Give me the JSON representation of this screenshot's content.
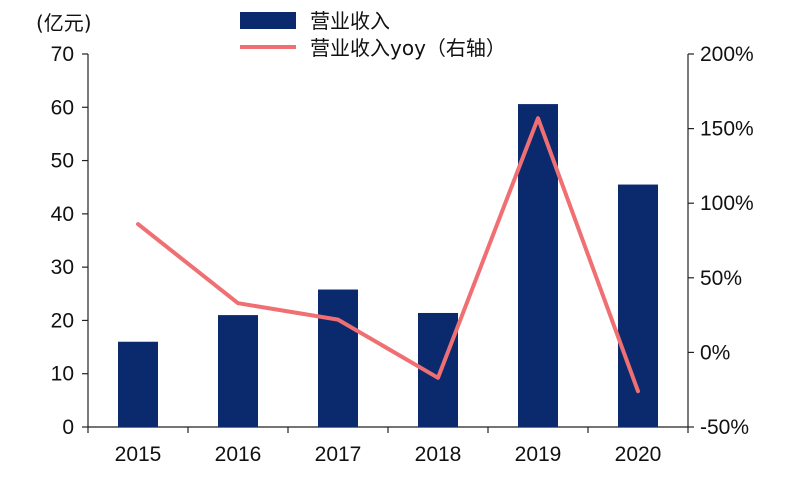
{
  "chart_data": {
    "type": "bar",
    "unit_label": "(亿元)",
    "categories": [
      "2015",
      "2016",
      "2017",
      "2018",
      "2019",
      "2020"
    ],
    "series": [
      {
        "name": "营业收入",
        "type": "bar",
        "axis": "left",
        "color": "#0b2a6e",
        "values": [
          16,
          21,
          25.8,
          21.4,
          60.6,
          45.5
        ]
      },
      {
        "name": "营业收入yoy（右轴）",
        "type": "line",
        "axis": "right",
        "color": "#ef6f73",
        "values": [
          86,
          33,
          22,
          -17,
          157,
          -26
        ]
      }
    ],
    "left_axis": {
      "ylim": [
        0,
        70
      ],
      "ticks": [
        "0",
        "10",
        "20",
        "30",
        "40",
        "50",
        "60",
        "70"
      ]
    },
    "right_axis": {
      "ylim": [
        -50,
        200
      ],
      "ticks": [
        "-50%",
        "0%",
        "50%",
        "100%",
        "150%",
        "200%"
      ]
    },
    "grid": false,
    "legend_position": "top-center"
  }
}
